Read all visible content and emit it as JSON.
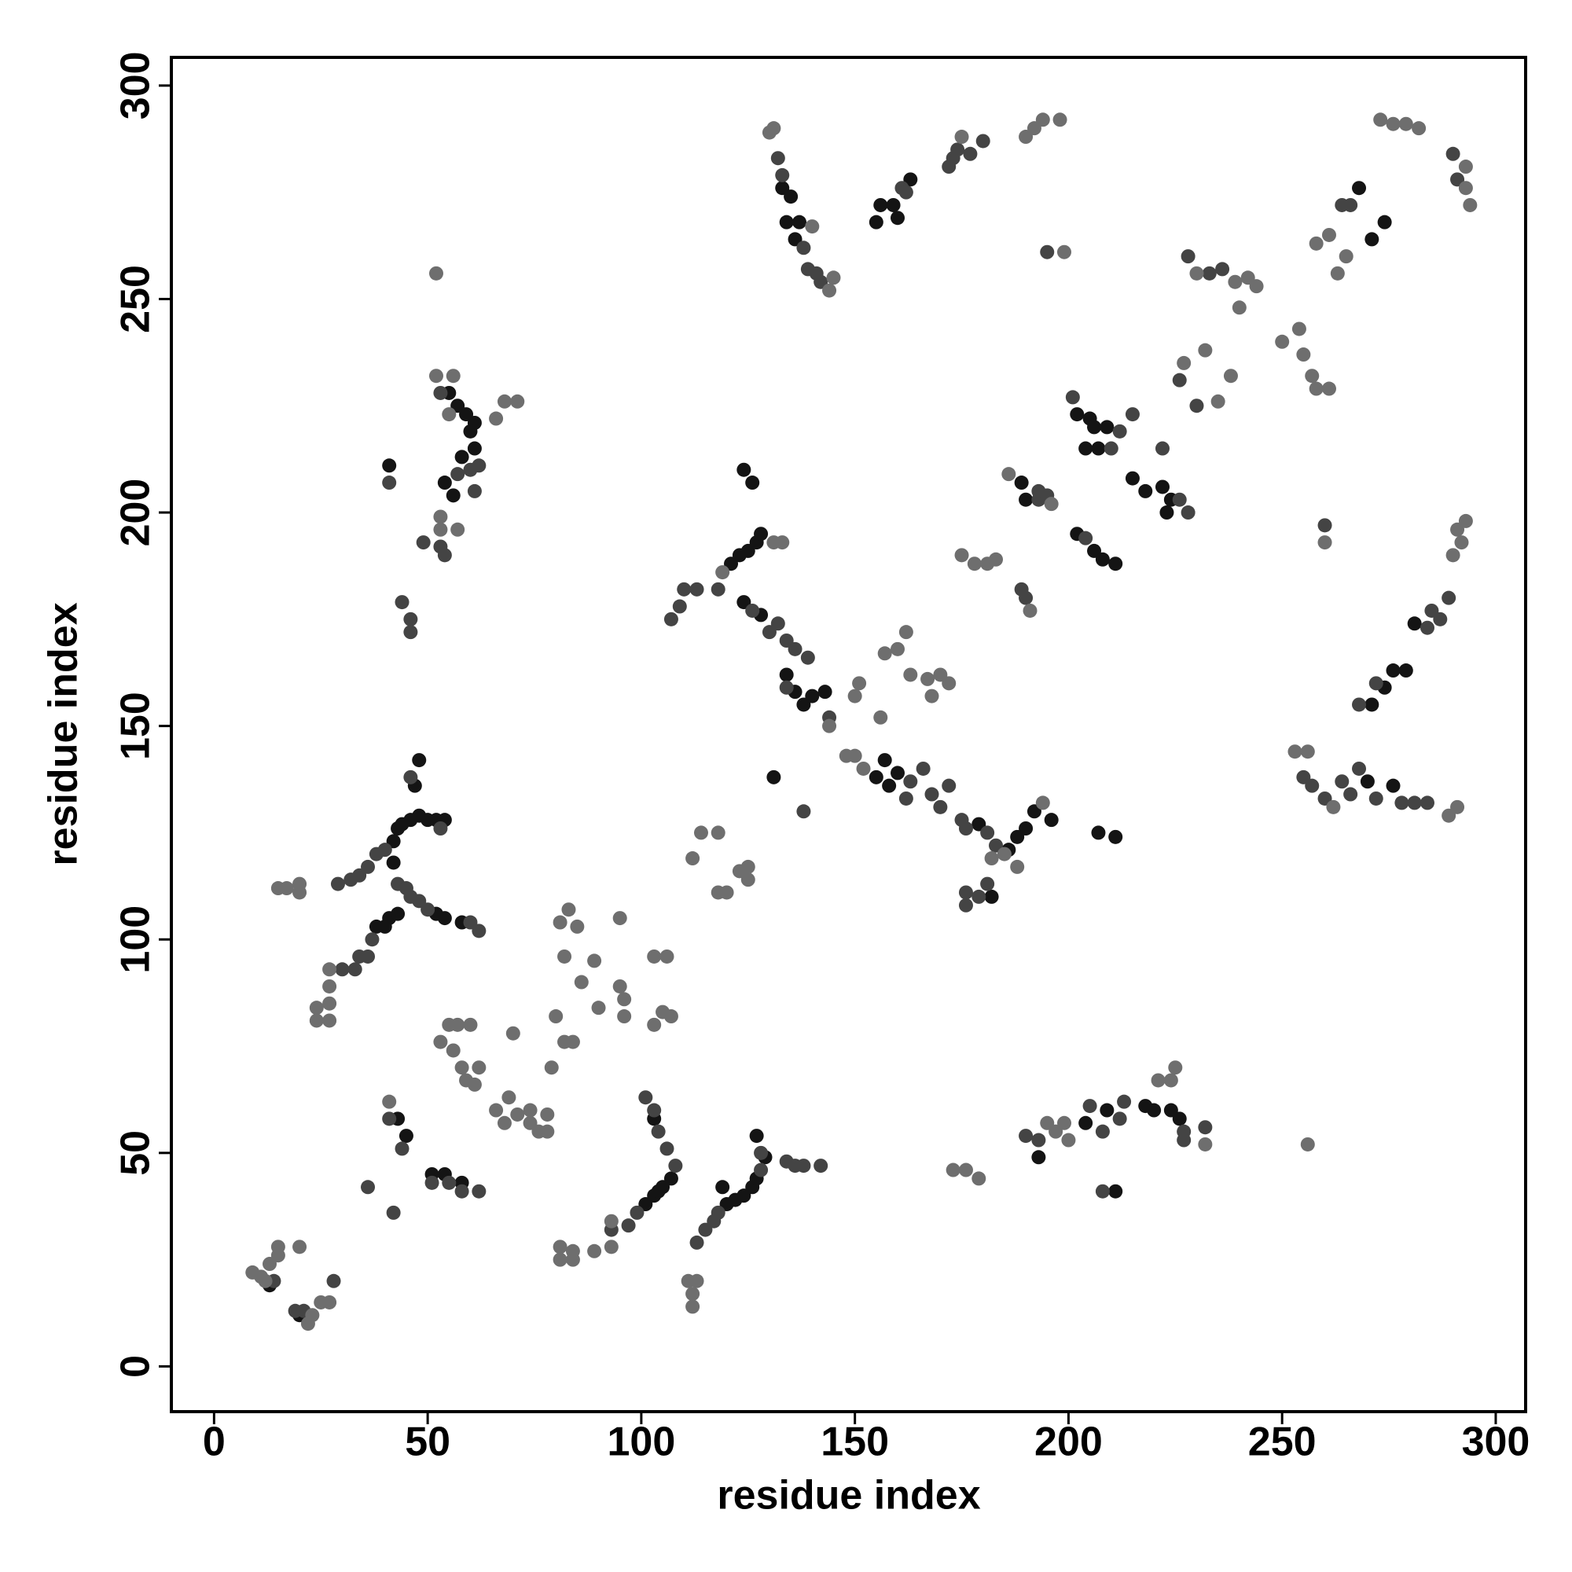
{
  "chart_data": {
    "type": "scatter",
    "xlabel": "residue index",
    "ylabel": "residue index",
    "xlim": [
      -10,
      307
    ],
    "ylim": [
      -10.6,
      306.6
    ],
    "xticks": [
      0,
      50,
      100,
      150,
      200,
      250,
      300
    ],
    "yticks": [
      0,
      50,
      100,
      150,
      200,
      250,
      300
    ],
    "series": [
      {
        "color": "#141414",
        "x": [
          41,
          57,
          59,
          61,
          61,
          56,
          54,
          55,
          60,
          58,
          42,
          43,
          44,
          46,
          48,
          50,
          52,
          54,
          47,
          48,
          42,
          38,
          40,
          41,
          43,
          52,
          54,
          58,
          101,
          103,
          104,
          105,
          107,
          103,
          119,
          120,
          122,
          124,
          126,
          127,
          127,
          129,
          121,
          123,
          125,
          127,
          128,
          124,
          126,
          124,
          128,
          134,
          136,
          138,
          140,
          143,
          131,
          155,
          157,
          158,
          160,
          186,
          188,
          190,
          192,
          196,
          179,
          182,
          207,
          211,
          202,
          205,
          206,
          209,
          204,
          207,
          202,
          206,
          208,
          211,
          215,
          218,
          222,
          224,
          223,
          189,
          190,
          133,
          135,
          134,
          137,
          136,
          155,
          156,
          159,
          160,
          163,
          268,
          271,
          274,
          270,
          276,
          271,
          274,
          276,
          279,
          281,
          204,
          209,
          218,
          220,
          224,
          226,
          211,
          193,
          13,
          20,
          51,
          54,
          58,
          43,
          45
        ],
        "values": [
          211,
          225,
          223,
          215,
          221,
          204,
          207,
          228,
          219,
          213,
          123,
          126,
          127,
          128,
          129,
          128,
          128,
          128,
          136,
          142,
          118,
          103,
          103,
          105,
          106,
          106,
          105,
          104,
          38,
          40,
          41,
          42,
          44,
          58,
          42,
          38,
          39,
          40,
          42,
          44,
          54,
          49,
          188,
          190,
          191,
          193,
          195,
          210,
          207,
          179,
          176,
          162,
          158,
          155,
          157,
          158,
          138,
          138,
          142,
          136,
          139,
          121,
          124,
          126,
          130,
          128,
          127,
          110,
          125,
          124,
          223,
          222,
          220,
          220,
          215,
          215,
          195,
          191,
          189,
          188,
          208,
          205,
          206,
          203,
          200,
          207,
          203,
          276,
          274,
          268,
          268,
          264,
          268,
          272,
          272,
          269,
          278,
          276,
          264,
          268,
          137,
          136,
          155,
          159,
          163,
          163,
          174,
          57,
          60,
          61,
          60,
          60,
          58,
          41,
          49,
          19,
          12,
          45,
          45,
          43,
          58,
          54
        ]
      },
      {
        "color": "#444444",
        "x": [
          14,
          19,
          21,
          28,
          36,
          41,
          44,
          42,
          51,
          55,
          58,
          62,
          43,
          45,
          46,
          48,
          50,
          60,
          62,
          29,
          32,
          34,
          36,
          38,
          40,
          53,
          46,
          41,
          44,
          46,
          46,
          49,
          53,
          54,
          57,
          60,
          53,
          62,
          61,
          30,
          33,
          34,
          36,
          37,
          99,
          97,
          93,
          106,
          104,
          101,
          108,
          113,
          115,
          117,
          118,
          128,
          128,
          134,
          136,
          138,
          142,
          103,
          107,
          109,
          110,
          113,
          118,
          126,
          130,
          132,
          134,
          136,
          139,
          134,
          144,
          162,
          163,
          166,
          168,
          170,
          172,
          175,
          176,
          181,
          183,
          138,
          176,
          176,
          179,
          181,
          132,
          133,
          138,
          139,
          141,
          142,
          161,
          162,
          172,
          173,
          174,
          177,
          180,
          195,
          193,
          193,
          195,
          201,
          210,
          212,
          204,
          215,
          226,
          228,
          222,
          189,
          190,
          230,
          233,
          236,
          226,
          228,
          255,
          257,
          260,
          264,
          266,
          268,
          272,
          278,
          281,
          284,
          264,
          266,
          268,
          272,
          284,
          285,
          287,
          289,
          260,
          290,
          291,
          190,
          193,
          205,
          208,
          212,
          213,
          227,
          227,
          232,
          208
        ],
        "values": [
          20,
          13,
          13,
          20,
          42,
          58,
          51,
          36,
          43,
          43,
          41,
          41,
          113,
          112,
          110,
          109,
          107,
          104,
          102,
          113,
          114,
          115,
          117,
          120,
          121,
          126,
          138,
          207,
          179,
          175,
          172,
          193,
          192,
          190,
          209,
          210,
          228,
          211,
          205,
          93,
          93,
          96,
          96,
          100,
          36,
          33,
          32,
          51,
          55,
          63,
          47,
          29,
          32,
          34,
          36,
          46,
          50,
          48,
          47,
          47,
          47,
          60,
          175,
          178,
          182,
          182,
          182,
          177,
          172,
          174,
          170,
          168,
          166,
          159,
          152,
          133,
          137,
          140,
          134,
          131,
          136,
          128,
          126,
          125,
          122,
          130,
          108,
          111,
          110,
          113,
          283,
          279,
          262,
          257,
          256,
          254,
          276,
          275,
          281,
          283,
          285,
          284,
          287,
          261,
          203,
          205,
          204,
          227,
          215,
          219,
          194,
          223,
          203,
          200,
          215,
          182,
          180,
          225,
          256,
          257,
          231,
          260,
          138,
          136,
          133,
          137,
          134,
          140,
          133,
          132,
          132,
          132,
          272,
          272,
          155,
          160,
          173,
          177,
          175,
          180,
          197,
          284,
          278,
          54,
          53,
          61,
          55,
          58,
          62,
          55,
          53,
          56,
          41
        ]
      },
      {
        "color": "#6e6e6e",
        "x": [
          9,
          11,
          12,
          13,
          15,
          15,
          20,
          22,
          23,
          25,
          27,
          41,
          15,
          17,
          20,
          20,
          24,
          27,
          24,
          27,
          27,
          27,
          52,
          56,
          55,
          53,
          53,
          57,
          66,
          68,
          71,
          52,
          53,
          55,
          57,
          56,
          58,
          59,
          60,
          61,
          62,
          66,
          68,
          69,
          70,
          71,
          74,
          74,
          76,
          78,
          78,
          79,
          80,
          81,
          83,
          85,
          82,
          84,
          82,
          86,
          89,
          90,
          95,
          95,
          96,
          96,
          103,
          106,
          103,
          105,
          107,
          81,
          81,
          84,
          84,
          89,
          93,
          93,
          111,
          112,
          112,
          113,
          112,
          114,
          118,
          118,
          120,
          123,
          125,
          125,
          131,
          133,
          119,
          144,
          148,
          150,
          152,
          150,
          151,
          156,
          157,
          160,
          162,
          163,
          167,
          170,
          168,
          172,
          194,
          182,
          185,
          188,
          173,
          176,
          179,
          195,
          197,
          200,
          199,
          221,
          224,
          225,
          232,
          130,
          131,
          140,
          144,
          145,
          175,
          190,
          192,
          194,
          198,
          199,
          186,
          196,
          175,
          178,
          181,
          183,
          191,
          227,
          232,
          235,
          238,
          239,
          240,
          242,
          244,
          250,
          254,
          255,
          257,
          258,
          261,
          230,
          253,
          256,
          262,
          289,
          291,
          258,
          261,
          263,
          265,
          260,
          290,
          292,
          293,
          291,
          273,
          276,
          279,
          282,
          293,
          293,
          294,
          256
        ],
        "values": [
          22,
          21,
          20,
          24,
          26,
          28,
          28,
          10,
          12,
          15,
          15,
          62,
          112,
          112,
          111,
          113,
          81,
          81,
          84,
          85,
          89,
          93,
          232,
          232,
          223,
          199,
          196,
          196,
          222,
          226,
          226,
          256,
          76,
          80,
          80,
          74,
          70,
          67,
          80,
          66,
          70,
          60,
          57,
          63,
          78,
          59,
          57,
          60,
          55,
          59,
          55,
          70,
          82,
          104,
          107,
          103,
          76,
          76,
          96,
          90,
          95,
          84,
          105,
          89,
          86,
          82,
          96,
          96,
          80,
          83,
          82,
          25,
          28,
          25,
          27,
          27,
          28,
          34,
          20,
          17,
          14,
          20,
          119,
          125,
          125,
          111,
          111,
          116,
          117,
          114,
          193,
          193,
          186,
          150,
          143,
          143,
          140,
          157,
          160,
          152,
          167,
          168,
          172,
          162,
          161,
          162,
          157,
          160,
          132,
          119,
          120,
          117,
          46,
          46,
          44,
          57,
          55,
          53,
          57,
          67,
          67,
          70,
          52,
          289,
          290,
          267,
          252,
          255,
          288,
          288,
          290,
          292,
          292,
          261,
          209,
          202,
          190,
          188,
          188,
          189,
          177,
          235,
          238,
          226,
          232,
          254,
          248,
          255,
          253,
          240,
          243,
          237,
          232,
          229,
          229,
          256,
          144,
          144,
          131,
          129,
          131,
          263,
          265,
          256,
          260,
          193,
          190,
          193,
          198,
          196,
          292,
          291,
          291,
          290,
          276,
          281,
          272,
          52
        ]
      }
    ]
  }
}
